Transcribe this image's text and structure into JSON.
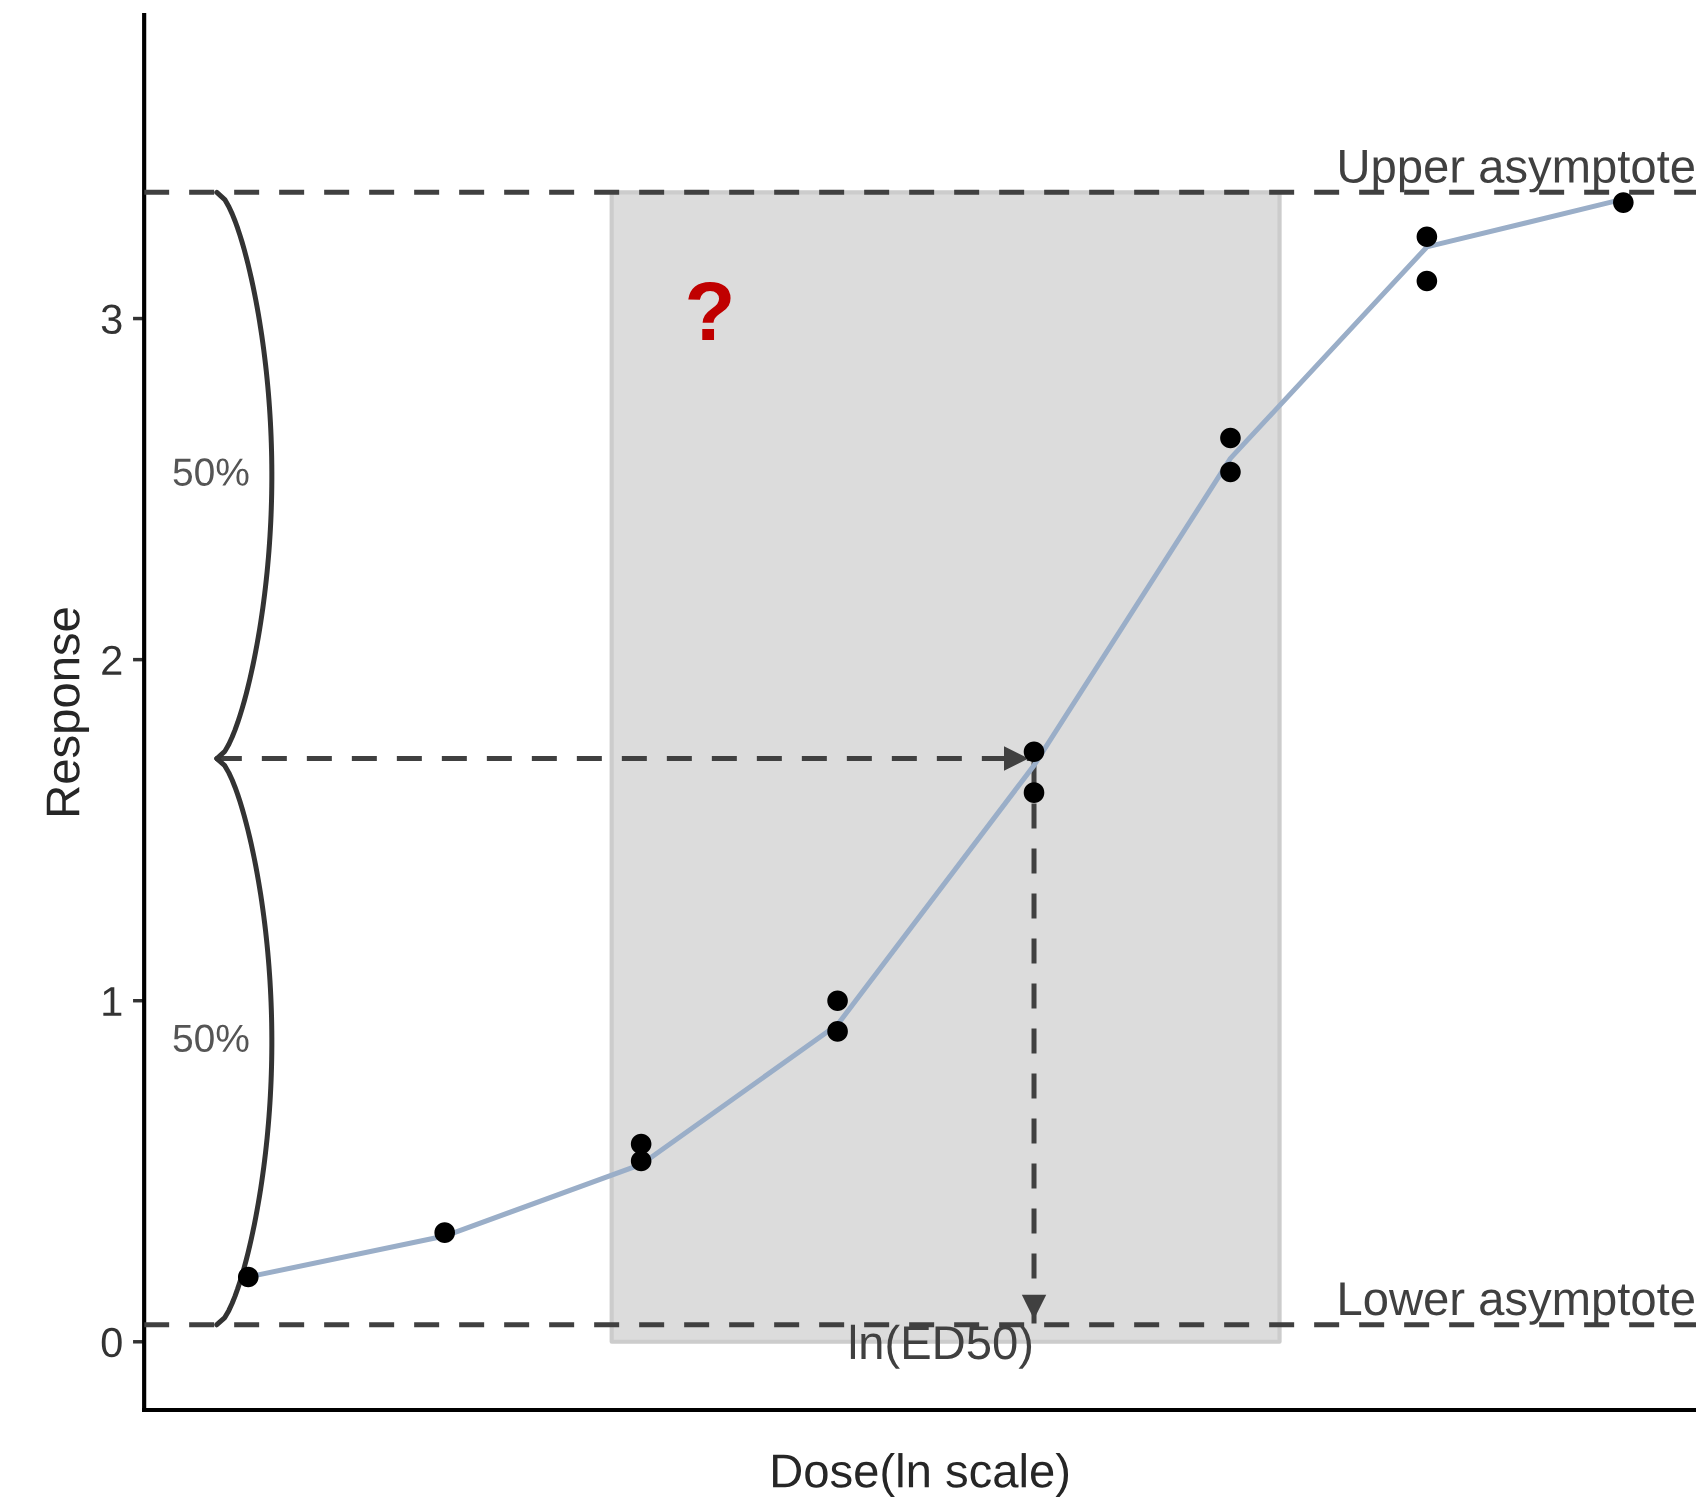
{
  "chart_data": {
    "type": "scatter",
    "xlabel": "Dose(ln scale)",
    "ylabel": "Response",
    "categories": [
      null,
      null,
      null,
      null,
      null,
      null,
      null,
      null
    ],
    "ylim": [
      -0.2,
      3.89
    ],
    "yticks": [
      0,
      1,
      2,
      3
    ],
    "grid": false,
    "series": [
      {
        "color": "#000000",
        "marker": "circle",
        "values": [
          0.19,
          0.32,
          0.58,
          1.0,
          1.73,
          2.65,
          3.24,
          3.34
        ]
      },
      {
        "color": "#000000",
        "marker": "circle",
        "values": [
          null,
          null,
          0.53,
          0.91,
          1.61,
          2.55,
          3.11,
          null
        ]
      },
      {
        "type": "line",
        "color": "#9aaec8",
        "line_style": "solid",
        "values": [
          0.19,
          0.31,
          0.52,
          0.93,
          1.69,
          2.59,
          3.21,
          3.35
        ]
      }
    ],
    "ref_lines": [
      {
        "axis": "y",
        "value": 3.37,
        "label": "Upper asymptote",
        "color": "#404040",
        "line_style": "dashed"
      },
      {
        "axis": "y",
        "value": 0.05,
        "label": "Lower asymptote",
        "color": "#404040",
        "line_style": "dashed"
      },
      {
        "axis": "y",
        "value": 1.71,
        "color": "#404040",
        "line_style": "dashed"
      }
    ],
    "annotations": [
      "?",
      "50%",
      "50%",
      "ln(ED50)"
    ]
  }
}
